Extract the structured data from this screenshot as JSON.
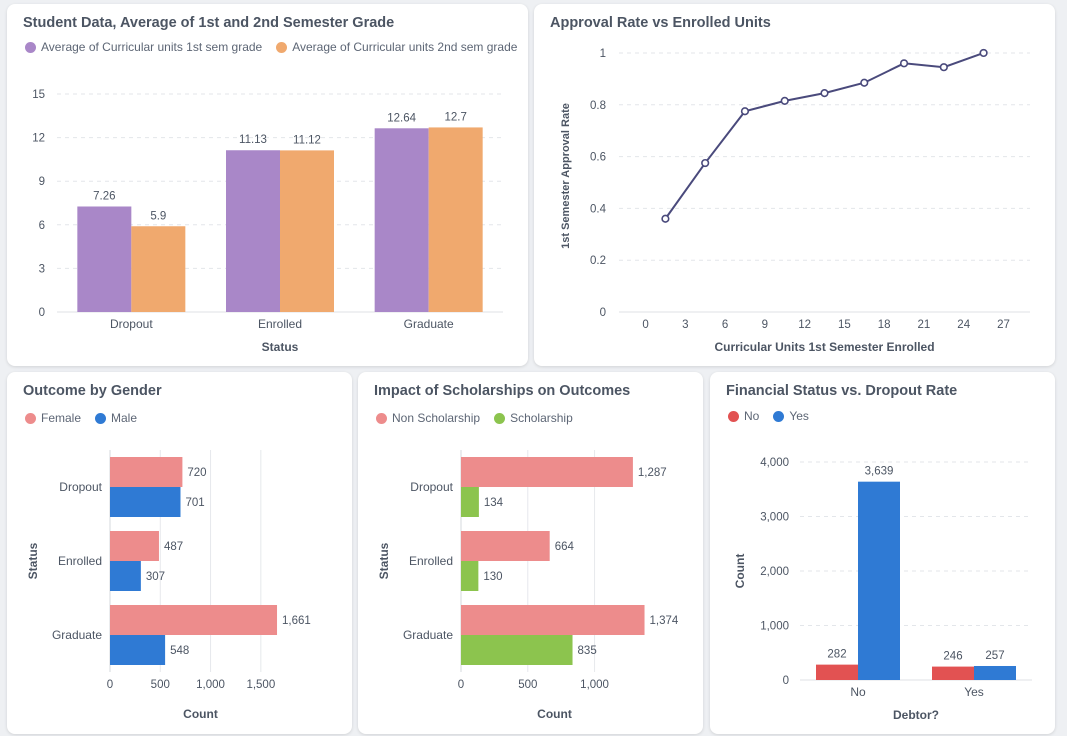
{
  "colors": {
    "purple": "#a987c8",
    "orange": "#f0a96e",
    "line": "#4a4a7c",
    "pink": "#ed8c8c",
    "blue": "#2f7ad4",
    "green": "#8cc44e",
    "red": "#e25252"
  },
  "chart_data": [
    {
      "id": "grades",
      "type": "bar",
      "title": "Student Data, Average of 1st and 2nd Semester Grade",
      "xlabel": "Status",
      "ylabel": "",
      "categories": [
        "Dropout",
        "Enrolled",
        "Graduate"
      ],
      "series": [
        {
          "name": "Average of Curricular units 1st sem grade",
          "values": [
            7.26,
            11.13,
            12.64
          ],
          "labels": [
            "7.26",
            "11.13",
            "12.64"
          ]
        },
        {
          "name": "Average of Curricular units 2nd sem grade",
          "values": [
            5.9,
            11.12,
            12.7
          ],
          "labels": [
            "5.9",
            "11.12",
            "12.7"
          ]
        }
      ],
      "ylim": [
        0,
        15
      ],
      "yticks": [
        0,
        3,
        6,
        9,
        12,
        15
      ],
      "legend": "top-left",
      "grid": true
    },
    {
      "id": "approval",
      "type": "line",
      "title": "Approval Rate vs Enrolled Units",
      "xlabel": "Curricular Units 1st Semester Enrolled",
      "ylabel": "1st Semester Approval Rate",
      "x": [
        1.5,
        4.5,
        7.5,
        10.5,
        13.5,
        16.5,
        19.5,
        22.5,
        25.5
      ],
      "y": [
        0.36,
        0.575,
        0.775,
        0.815,
        0.845,
        0.885,
        0.96,
        0.945,
        1.0
      ],
      "xticks": [
        0,
        3,
        6,
        9,
        12,
        15,
        18,
        21,
        24,
        27
      ],
      "yticks": [
        0,
        0.2,
        0.4,
        0.6,
        0.8,
        1
      ],
      "ytick_labels": [
        "0",
        "0.2",
        "0.4",
        "0.6",
        "0.8",
        "1"
      ],
      "xlim": [
        -2,
        29
      ],
      "ylim": [
        0,
        1.05
      ],
      "grid": true
    },
    {
      "id": "gender",
      "type": "bar",
      "orientation": "horizontal",
      "title": "Outcome by Gender",
      "xlabel": "Count",
      "ylabel": "Status",
      "categories": [
        "Dropout",
        "Enrolled",
        "Graduate"
      ],
      "series": [
        {
          "name": "Female",
          "values": [
            720,
            487,
            1661
          ],
          "labels": [
            "720",
            "487",
            "1,661"
          ]
        },
        {
          "name": "Male",
          "values": [
            701,
            307,
            548
          ],
          "labels": [
            "701",
            "307",
            "548"
          ]
        }
      ],
      "xticks": [
        0,
        500,
        1000,
        1500
      ],
      "xtick_labels": [
        "0",
        "500",
        "1,000",
        "1,500"
      ],
      "xlim": [
        0,
        1800
      ],
      "legend": "top-left",
      "grid": true
    },
    {
      "id": "scholarship",
      "type": "bar",
      "orientation": "horizontal",
      "title": "Impact of Scholarships on Outcomes",
      "xlabel": "Count",
      "ylabel": "Status",
      "categories": [
        "Dropout",
        "Enrolled",
        "Graduate"
      ],
      "series": [
        {
          "name": "Non Scholarship",
          "values": [
            1287,
            664,
            1374
          ],
          "labels": [
            "1,287",
            "664",
            "1,374"
          ]
        },
        {
          "name": "Scholarship",
          "values": [
            134,
            130,
            835
          ],
          "labels": [
            "134",
            "130",
            "835"
          ]
        }
      ],
      "xticks": [
        0,
        500,
        1000
      ],
      "xtick_labels": [
        "0",
        "500",
        "1,000"
      ],
      "xlim": [
        0,
        1400
      ],
      "legend": "top-left",
      "grid": true
    },
    {
      "id": "debtor",
      "type": "bar",
      "title": "Financial Status vs. Dropout Rate",
      "xlabel": "Debtor?",
      "ylabel": "Count",
      "categories": [
        "No",
        "Yes"
      ],
      "series": [
        {
          "name": "No",
          "values": [
            282,
            246
          ],
          "labels": [
            "282",
            "246"
          ]
        },
        {
          "name": "Yes",
          "values": [
            3639,
            257
          ],
          "labels": [
            "3,639",
            "257"
          ]
        }
      ],
      "yticks": [
        0,
        1000,
        2000,
        3000,
        4000
      ],
      "ytick_labels": [
        "0",
        "1,000",
        "2,000",
        "3,000",
        "4,000"
      ],
      "ylim": [
        0,
        4000
      ],
      "legend": "top-left",
      "grid": true
    }
  ]
}
